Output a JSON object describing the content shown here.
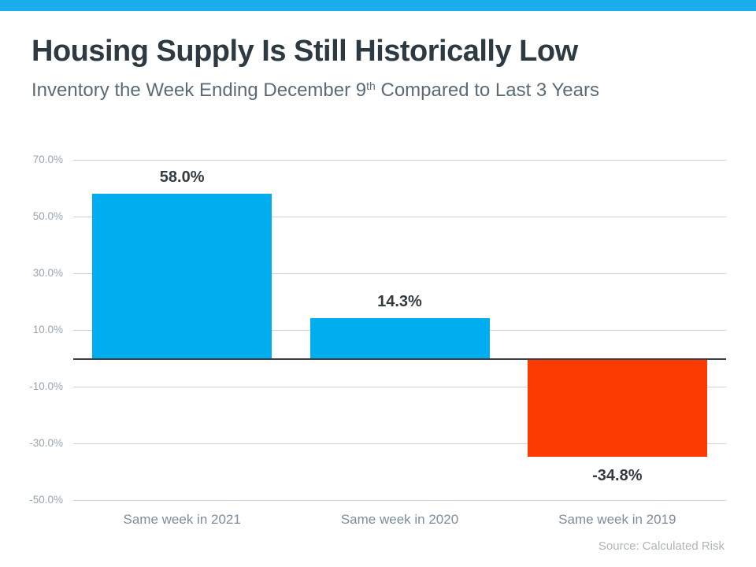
{
  "header": {
    "strip_color": "#19adec"
  },
  "title": "Housing Supply Is Still Historically Low",
  "subtitle": {
    "prefix": "Inventory the Week Ending December 9",
    "superscript": "th",
    "suffix": " Compared to Last 3 Years"
  },
  "source": "Source: Calculated Risk",
  "chart_data": {
    "type": "bar",
    "title": "Housing Supply Is Still Historically Low",
    "subtitle": "Inventory the Week Ending December 9th Compared to Last 3 Years",
    "categories": [
      "Same week in 2021",
      "Same week in 2020",
      "Same week in 2019"
    ],
    "values": [
      58.0,
      14.3,
      -34.8
    ],
    "value_labels": [
      "58.0%",
      "14.3%",
      "-34.8%"
    ],
    "bar_colors": [
      "#00aeef",
      "#00aeef",
      "#fb3b02"
    ],
    "xlabel": "",
    "ylabel": "",
    "ylim": [
      -50,
      70
    ],
    "yticks": [
      70,
      50,
      30,
      10,
      -10,
      -30,
      -50
    ],
    "ytick_labels": [
      "70.0%",
      "50.0%",
      "30.0%",
      "10.0%",
      "-10.0%",
      "-30.0%",
      "-50.0%"
    ],
    "grid": true,
    "legend": false,
    "zero_line": true
  }
}
